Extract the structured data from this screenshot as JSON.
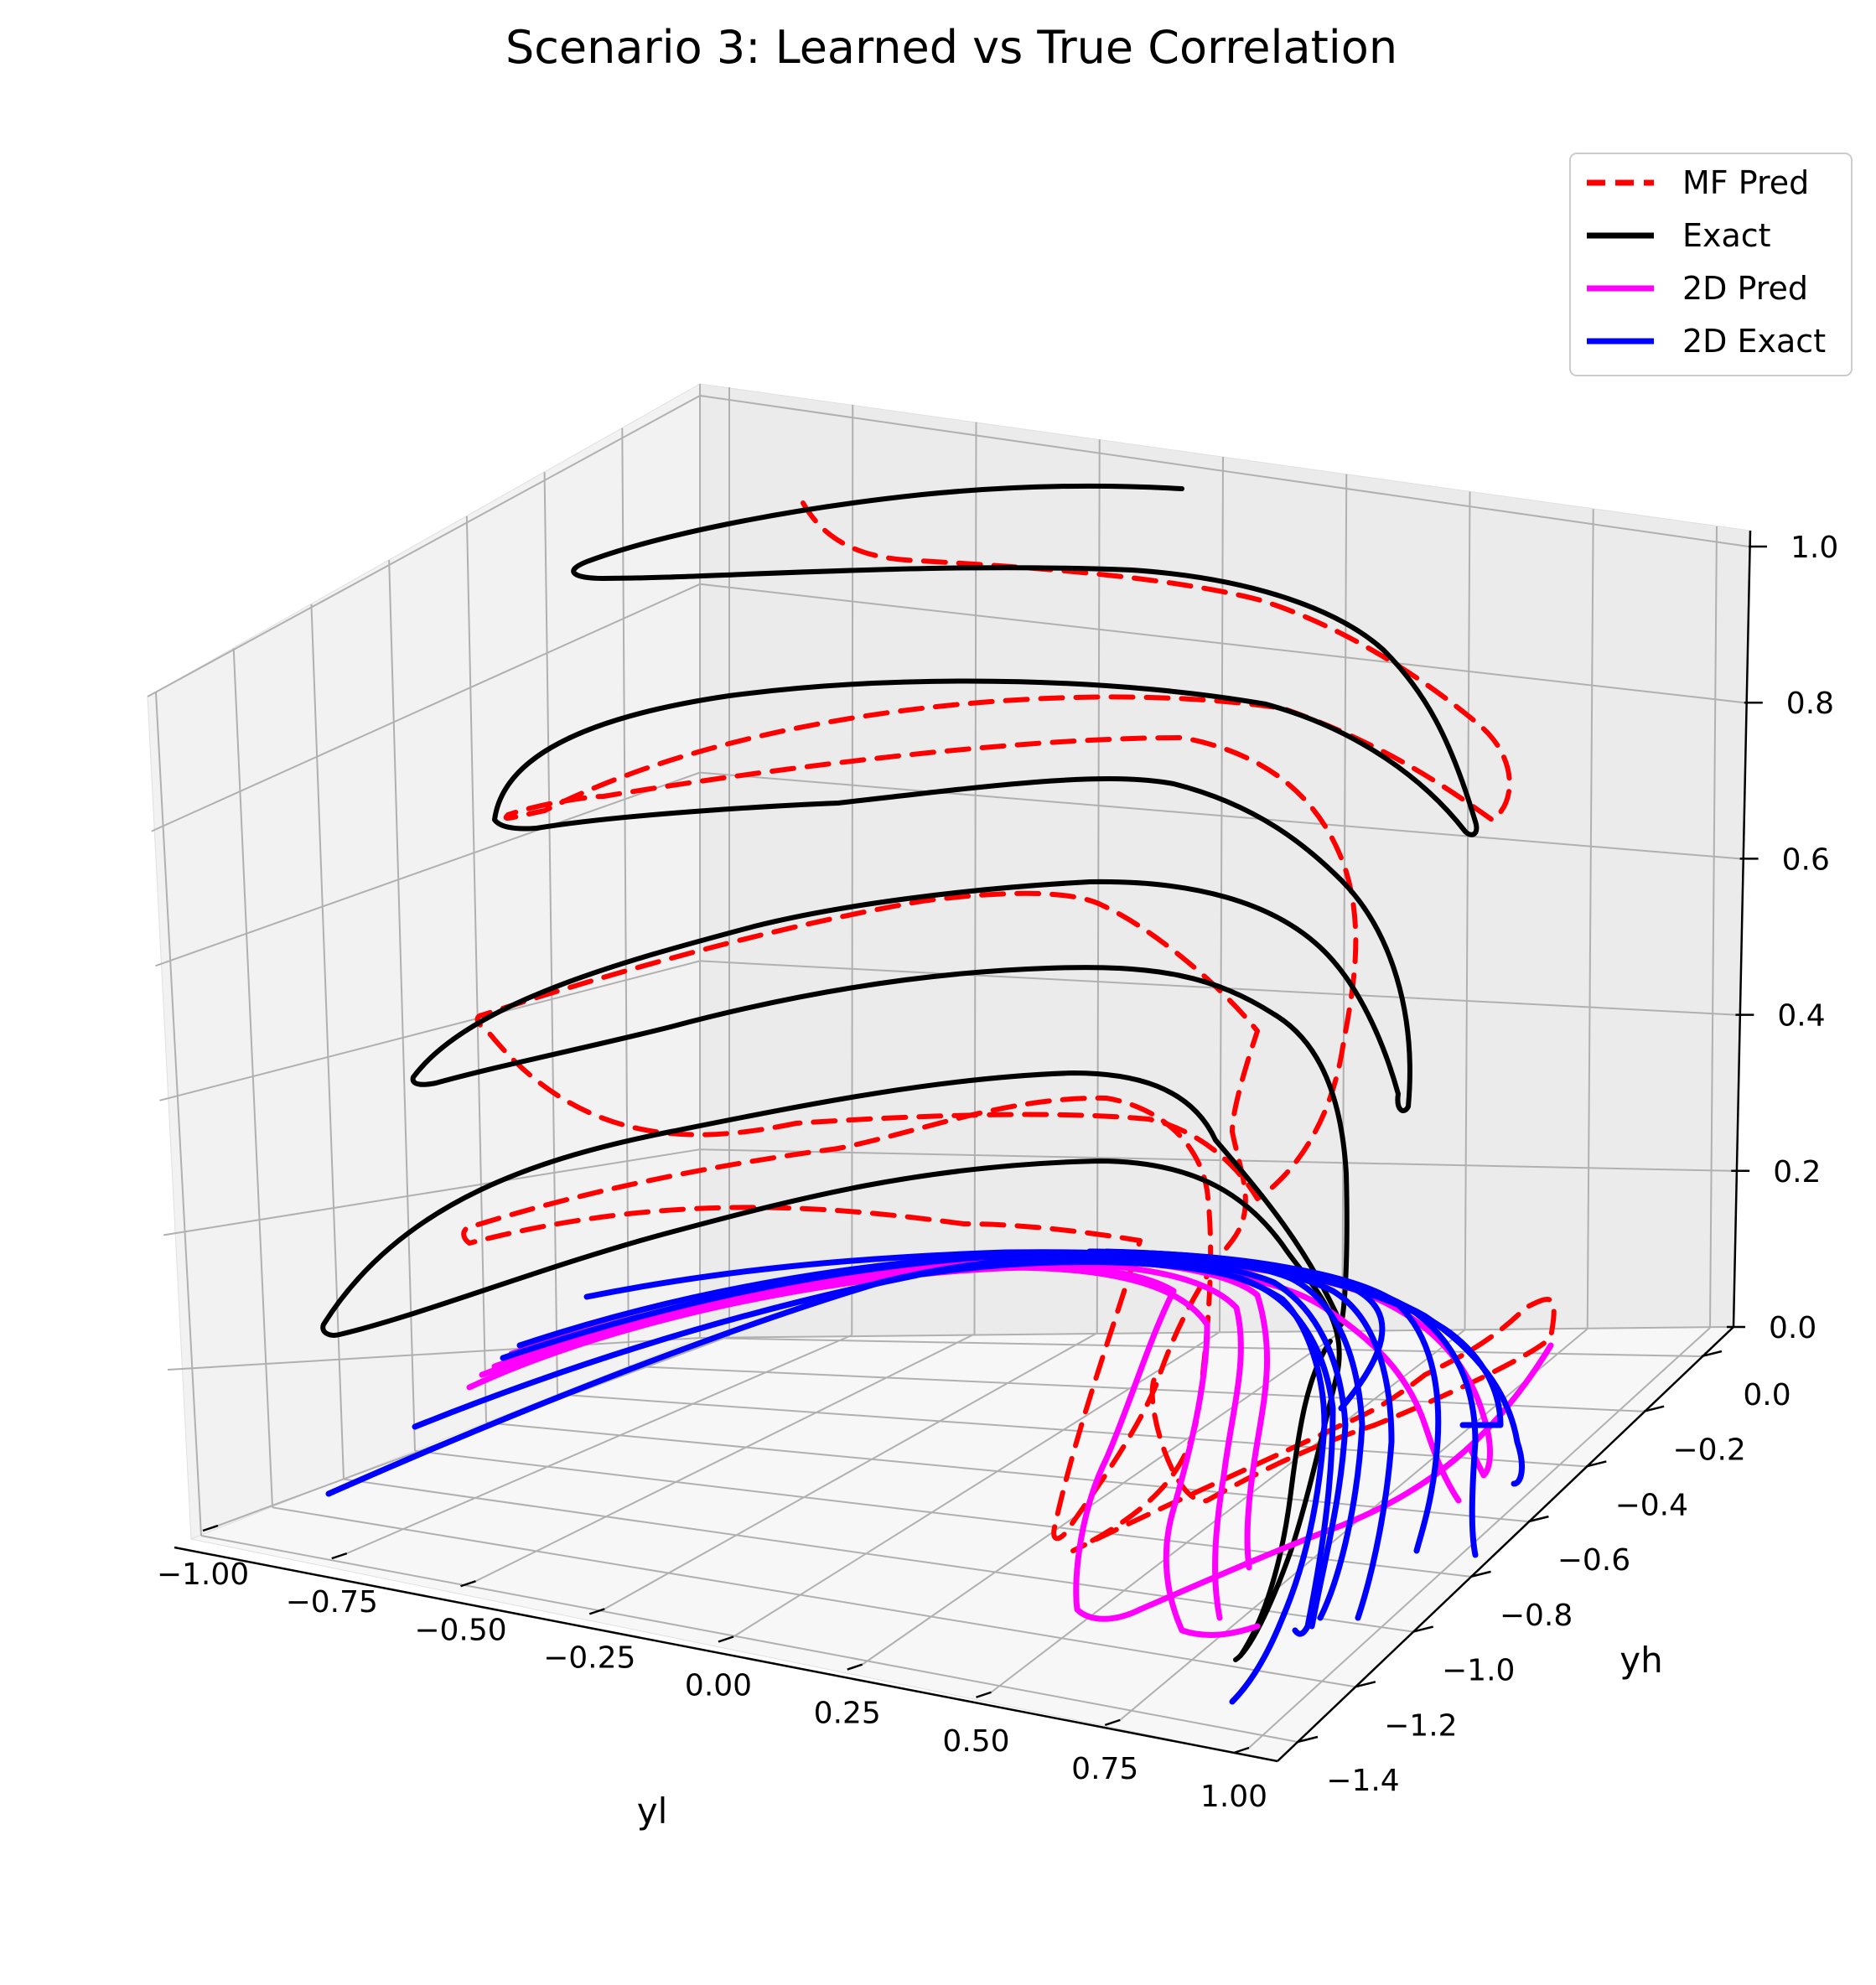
{
  "chart_data": {
    "type": "line",
    "projection": "3d",
    "title": "Scenario 3: Learned vs True Correlation",
    "xlabel": "yl",
    "ylabel": "yh",
    "zlabel": "",
    "xlim": [
      -1.0,
      1.0
    ],
    "ylim": [
      -1.4,
      0.0
    ],
    "zlim": [
      0.0,
      1.0
    ],
    "x_ticks": [
      "−1.00",
      "−0.75",
      "−0.50",
      "−0.25",
      "0.00",
      "0.25",
      "0.50",
      "0.75",
      "1.00"
    ],
    "y_ticks": [
      "0.0",
      "−0.2",
      "−0.4",
      "−0.6",
      "−0.8",
      "−1.0",
      "−1.2",
      "−1.4"
    ],
    "z_ticks": [
      "0.0",
      "0.2",
      "0.4",
      "0.6",
      "0.8",
      "1.0"
    ],
    "grid": true,
    "legend_position": "top-right",
    "legend": [
      {
        "label": "MF Pred",
        "color": "#ff0000",
        "dashed": true
      },
      {
        "label": "Exact",
        "color": "#000000",
        "dashed": false
      },
      {
        "label": "2D Pred",
        "color": "#ff00ff",
        "dashed": false
      },
      {
        "label": "2D Exact",
        "color": "#0000ff",
        "dashed": false
      }
    ],
    "series": [
      {
        "name": "MF Pred",
        "color": "#ff0000",
        "dashed": true,
        "z_levels": [
          0.2,
          0.4,
          0.6,
          0.8,
          1.0
        ]
      },
      {
        "name": "Exact",
        "color": "#000000",
        "dashed": false,
        "z_levels": [
          0.0,
          0.2,
          0.4,
          0.6,
          0.8,
          1.0
        ]
      },
      {
        "name": "2D Pred",
        "color": "#ff00ff",
        "dashed": false,
        "z_levels": [
          0.0
        ]
      },
      {
        "name": "2D Exact",
        "color": "#0000ff",
        "dashed": false,
        "z_levels": [
          0.0
        ]
      }
    ]
  }
}
